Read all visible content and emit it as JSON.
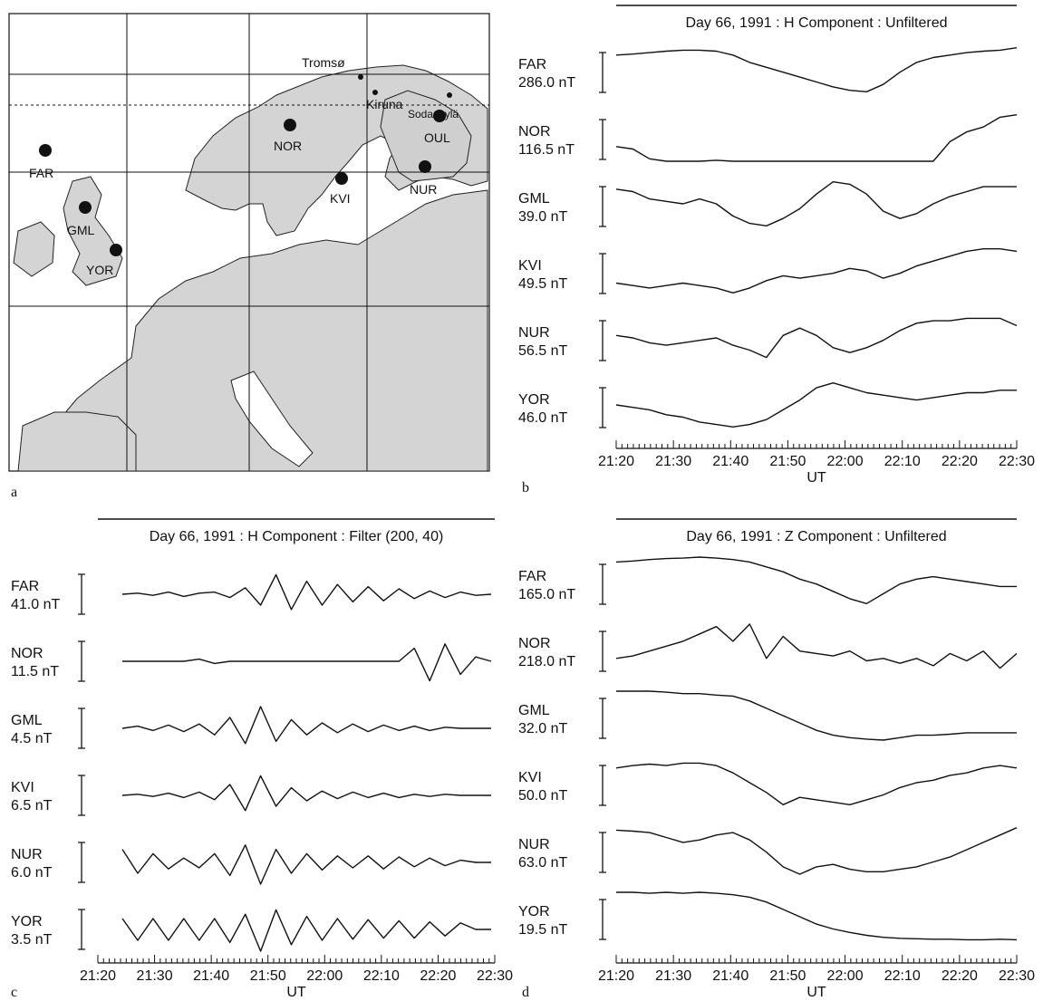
{
  "map": {
    "panel_label": "a",
    "stations": [
      {
        "code": "FAR"
      },
      {
        "code": "NOR"
      },
      {
        "code": "OUL"
      },
      {
        "code": "KVI"
      },
      {
        "code": "NUR"
      },
      {
        "code": "GML"
      },
      {
        "code": "YOR"
      }
    ],
    "places": [
      "Tromsø",
      "Kiruna",
      "Sodankylä"
    ]
  },
  "chart_data": [
    {
      "type": "line",
      "panel": "b",
      "title": "Day 66, 1991 : H Component : Unfiltered",
      "xlabel": "UT",
      "xticks": [
        "21:20",
        "21:30",
        "21:40",
        "21:50",
        "22:00",
        "22:10",
        "22:20",
        "22:30"
      ],
      "series": [
        {
          "name": "FAR",
          "scale": "286.0 nT",
          "values": [
            0.2,
            0.18,
            0.15,
            0.12,
            0.1,
            0.1,
            0.12,
            0.2,
            0.35,
            0.45,
            0.55,
            0.65,
            0.75,
            0.85,
            0.92,
            0.95,
            0.8,
            0.55,
            0.35,
            0.25,
            0.2,
            0.15,
            0.12,
            0.1,
            0.05
          ]
        },
        {
          "name": "NOR",
          "scale": "116.5 nT",
          "values": [
            0.7,
            0.75,
            0.95,
            1.0,
            1.0,
            1.0,
            0.98,
            1.0,
            1.0,
            1.0,
            1.0,
            1.0,
            1.0,
            1.0,
            1.0,
            1.0,
            1.0,
            1.0,
            1.0,
            1.0,
            0.6,
            0.4,
            0.3,
            0.1,
            0.05
          ]
        },
        {
          "name": "GML",
          "scale": "39.0 nT",
          "values": [
            0.2,
            0.25,
            0.4,
            0.45,
            0.5,
            0.4,
            0.5,
            0.75,
            0.9,
            0.95,
            0.8,
            0.6,
            0.3,
            0.05,
            0.1,
            0.3,
            0.65,
            0.8,
            0.7,
            0.5,
            0.35,
            0.25,
            0.15,
            0.15,
            0.15
          ]
        },
        {
          "name": "KVI",
          "scale": "49.5 nT",
          "values": [
            0.75,
            0.8,
            0.85,
            0.8,
            0.75,
            0.8,
            0.85,
            0.95,
            0.85,
            0.7,
            0.6,
            0.65,
            0.6,
            0.55,
            0.45,
            0.5,
            0.65,
            0.55,
            0.4,
            0.3,
            0.2,
            0.1,
            0.05,
            0.05,
            0.1
          ]
        },
        {
          "name": "NUR",
          "scale": "56.5 nT",
          "values": [
            0.45,
            0.5,
            0.6,
            0.65,
            0.6,
            0.55,
            0.5,
            0.65,
            0.75,
            0.9,
            0.45,
            0.3,
            0.45,
            0.7,
            0.8,
            0.7,
            0.55,
            0.35,
            0.2,
            0.15,
            0.15,
            0.1,
            0.1,
            0.1,
            0.25
          ]
        },
        {
          "name": "YOR",
          "scale": "46.0 nT",
          "values": [
            0.5,
            0.55,
            0.6,
            0.7,
            0.75,
            0.85,
            0.9,
            0.95,
            0.9,
            0.8,
            0.6,
            0.4,
            0.15,
            0.05,
            0.15,
            0.25,
            0.3,
            0.35,
            0.4,
            0.35,
            0.3,
            0.25,
            0.25,
            0.2,
            0.2
          ]
        }
      ]
    },
    {
      "type": "line",
      "panel": "c",
      "title": "Day 66, 1991 : H Component : Filter (200, 40)",
      "xlabel": "UT",
      "xticks": [
        "21:20",
        "21:30",
        "21:40",
        "21:50",
        "22:00",
        "22:10",
        "22:20",
        "22:30"
      ],
      "series": [
        {
          "name": "FAR",
          "scale": "41.0 nT",
          "values": [
            0,
            0.05,
            -0.05,
            0.1,
            -0.1,
            0.05,
            0.1,
            -0.15,
            0.3,
            -0.5,
            0.9,
            -0.7,
            0.6,
            -0.5,
            0.45,
            -0.35,
            0.35,
            -0.3,
            0.25,
            -0.2,
            0.15,
            -0.15,
            0.1,
            -0.05,
            0
          ]
        },
        {
          "name": "NOR",
          "scale": "11.5 nT",
          "values": [
            0,
            0,
            0,
            0,
            0,
            0.1,
            -0.1,
            0,
            0,
            0,
            0,
            0,
            0,
            0,
            0,
            0,
            0,
            0,
            0,
            0.6,
            -0.9,
            0.8,
            -0.6,
            0.2,
            0
          ]
        },
        {
          "name": "GML",
          "scale": "4.5 nT",
          "values": [
            0,
            0.1,
            -0.1,
            0.15,
            -0.15,
            0.2,
            -0.3,
            0.5,
            -0.7,
            1.0,
            -0.6,
            0.4,
            -0.3,
            0.25,
            -0.2,
            0.2,
            -0.15,
            0.15,
            -0.1,
            0.1,
            -0.1,
            0.05,
            0,
            0,
            0
          ]
        },
        {
          "name": "KVI",
          "scale": "6.5 nT",
          "values": [
            0,
            0.05,
            -0.05,
            0.1,
            -0.1,
            0.15,
            -0.2,
            0.5,
            -0.7,
            0.9,
            -0.5,
            0.35,
            -0.25,
            0.2,
            -0.15,
            0.15,
            -0.1,
            0.1,
            -0.1,
            0.05,
            -0.05,
            0.05,
            0,
            0,
            0
          ]
        },
        {
          "name": "NUR",
          "scale": "6.0 nT",
          "values": [
            0.6,
            -0.5,
            0.4,
            -0.3,
            0.2,
            -0.25,
            0.4,
            -0.6,
            0.8,
            -1.0,
            0.6,
            -0.5,
            0.4,
            -0.35,
            0.3,
            -0.25,
            0.3,
            -0.3,
            0.25,
            -0.2,
            0.2,
            -0.15,
            0.1,
            0,
            0
          ]
        },
        {
          "name": "YOR",
          "scale": "3.5 nT",
          "values": [
            0.5,
            -0.5,
            0.5,
            -0.5,
            0.5,
            -0.5,
            0.5,
            -0.6,
            0.7,
            -1.0,
            0.9,
            -0.7,
            0.6,
            -0.5,
            0.5,
            -0.45,
            0.45,
            -0.4,
            0.4,
            -0.4,
            0.35,
            -0.3,
            0.3,
            0,
            0
          ]
        }
      ]
    },
    {
      "type": "line",
      "panel": "d",
      "title": "Day 66, 1991 : Z Component : Unfiltered",
      "xlabel": "UT",
      "xticks": [
        "21:20",
        "21:30",
        "21:40",
        "21:50",
        "22:00",
        "22:10",
        "22:20",
        "22:30"
      ],
      "series": [
        {
          "name": "FAR",
          "scale": "165.0 nT",
          "values": [
            0.1,
            0.08,
            0.05,
            0.03,
            0.02,
            0,
            0.02,
            0.05,
            0.1,
            0.2,
            0.3,
            0.45,
            0.55,
            0.7,
            0.85,
            0.95,
            0.75,
            0.55,
            0.45,
            0.4,
            0.45,
            0.5,
            0.55,
            0.6,
            0.6
          ]
        },
        {
          "name": "NOR",
          "scale": "218.0 nT",
          "values": [
            0.7,
            0.65,
            0.55,
            0.45,
            0.35,
            0.2,
            0.05,
            0.35,
            0.0,
            0.7,
            0.25,
            0.55,
            0.6,
            0.65,
            0.55,
            0.75,
            0.7,
            0.8,
            0.7,
            0.85,
            0.6,
            0.75,
            0.55,
            0.9,
            0.6
          ]
        },
        {
          "name": "GML",
          "scale": "32.0 nT",
          "values": [
            0.0,
            0.0,
            0.0,
            0.02,
            0.05,
            0.05,
            0.08,
            0.1,
            0.2,
            0.35,
            0.5,
            0.65,
            0.8,
            0.9,
            0.95,
            0.98,
            1.0,
            0.95,
            0.9,
            0.9,
            0.88,
            0.85,
            0.85,
            0.85,
            0.85
          ]
        },
        {
          "name": "KVI",
          "scale": "50.0 nT",
          "values": [
            0.2,
            0.15,
            0.12,
            0.15,
            0.1,
            0.1,
            0.15,
            0.3,
            0.5,
            0.7,
            0.95,
            0.8,
            0.85,
            0.9,
            0.95,
            0.85,
            0.75,
            0.6,
            0.5,
            0.45,
            0.35,
            0.3,
            0.2,
            0.15,
            0.2
          ]
        },
        {
          "name": "NUR",
          "scale": "63.0 nT",
          "values": [
            0.1,
            0.12,
            0.15,
            0.25,
            0.35,
            0.3,
            0.2,
            0.15,
            0.3,
            0.55,
            0.85,
            1.0,
            0.85,
            0.8,
            0.9,
            0.95,
            0.95,
            0.9,
            0.85,
            0.75,
            0.65,
            0.5,
            0.35,
            0.2,
            0.05
          ]
        },
        {
          "name": "YOR",
          "scale": "19.5 nT",
          "values": [
            0.0,
            0.0,
            0.02,
            0.0,
            0.02,
            0.0,
            0.02,
            0.05,
            0.1,
            0.2,
            0.35,
            0.5,
            0.65,
            0.75,
            0.82,
            0.88,
            0.92,
            0.94,
            0.95,
            0.96,
            0.96,
            0.97,
            0.97,
            0.96,
            0.97
          ]
        }
      ]
    }
  ]
}
